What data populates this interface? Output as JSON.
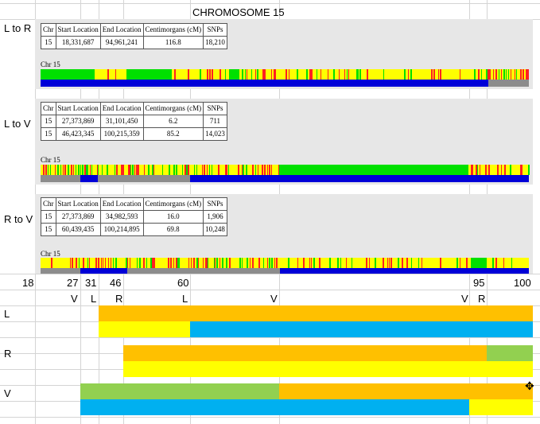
{
  "title": "CHROMOSOME 15",
  "comparisons": [
    {
      "label": "L to R",
      "headers": [
        "Chr",
        "Start Location",
        "End Location",
        "Centimorgans (cM)",
        "SNPs"
      ],
      "rows": [
        [
          "15",
          "18,331,687",
          "94,961,241",
          "116.8",
          "18,210"
        ]
      ],
      "chr_label": "Chr 15"
    },
    {
      "label": "L to V",
      "headers": [
        "Chr",
        "Start Location",
        "End Location",
        "Centimorgans (cM)",
        "SNPs"
      ],
      "rows": [
        [
          "15",
          "27,373,869",
          "31,101,450",
          "6.2",
          "711"
        ],
        [
          "15",
          "46,423,345",
          "100,215,359",
          "85.2",
          "14,023"
        ]
      ],
      "chr_label": "Chr 15"
    },
    {
      "label": "R to V",
      "headers": [
        "Chr",
        "Start Location",
        "End Location",
        "Centimorgans (cM)",
        "SNPs"
      ],
      "rows": [
        [
          "15",
          "27,373,869",
          "34,982,593",
          "16.0",
          "1,906"
        ],
        [
          "15",
          "60,439,435",
          "100,214,895",
          "69.8",
          "10,248"
        ]
      ],
      "chr_label": "Chr 15"
    }
  ],
  "scale_numbers": [
    "18",
    "27",
    "31",
    "46",
    "60",
    "95",
    "100"
  ],
  "breakpoint_markers": [
    "V",
    "L",
    "R",
    "L",
    "V",
    "V",
    "R"
  ],
  "person_rows": [
    "L",
    "R",
    "V"
  ],
  "colors": {
    "yellow": "#ffff00",
    "green": "#00e000",
    "red": "#ff2020",
    "blue": "#0000d8",
    "grey": "#8c8c8c",
    "orange": "#ffc000",
    "cyan": "#00b0f0",
    "light_green": "#92d050",
    "grey_bg": "#e7e7e7",
    "grid": "#d4d4d4"
  }
}
